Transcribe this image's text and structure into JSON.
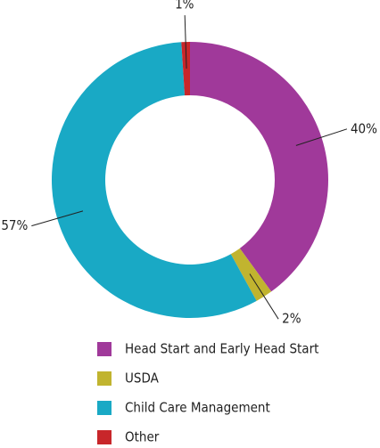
{
  "chart_data": {
    "type": "pie",
    "categories": [
      "Head Start and Early Head Start",
      "USDA",
      "Child Care Management",
      "Other"
    ],
    "values": [
      40,
      2,
      57,
      1
    ],
    "value_labels": [
      "40%",
      "2%",
      "57%",
      "1%"
    ],
    "colors": [
      "#a0399a",
      "#c1b42f",
      "#19a9c5",
      "#c8262a"
    ],
    "donut": true
  }
}
